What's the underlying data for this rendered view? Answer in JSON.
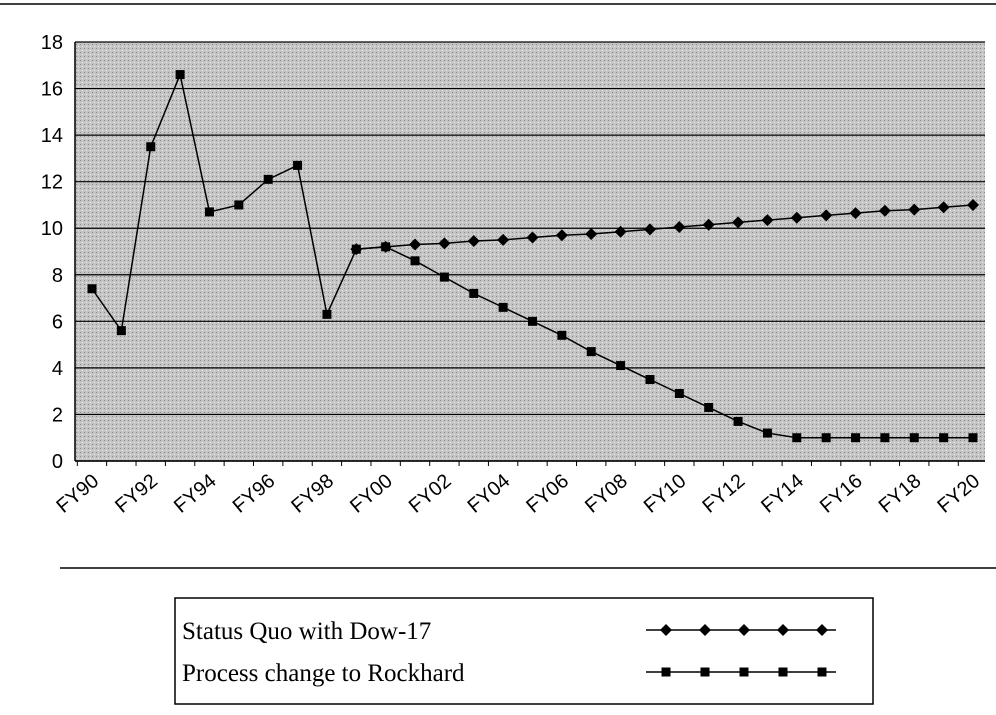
{
  "chart_data": {
    "type": "line",
    "categories": [
      "FY90",
      null,
      "FY92",
      null,
      "FY94",
      null,
      "FY96",
      null,
      "FY98",
      null,
      "FY00",
      null,
      "FY02",
      null,
      "FY04",
      null,
      "FY06",
      null,
      "FY08",
      null,
      "FY10",
      null,
      "FY12",
      null,
      "FY14",
      null,
      "FY16",
      null,
      "FY18",
      null,
      "FY20"
    ],
    "series": [
      {
        "name": "Status Quo with Dow-17",
        "color": "#000000",
        "marker": "diamond",
        "values": [
          null,
          null,
          null,
          null,
          null,
          null,
          null,
          null,
          null,
          9.1,
          9.2,
          9.3,
          9.35,
          9.45,
          9.5,
          9.6,
          9.7,
          9.75,
          9.85,
          9.95,
          10.05,
          10.15,
          10.25,
          10.35,
          10.45,
          10.55,
          10.65,
          10.75,
          10.8,
          10.9,
          11.0
        ]
      },
      {
        "name": "Process change to Rockhard",
        "color": "#000000",
        "marker": "square",
        "values": [
          7.4,
          5.6,
          13.5,
          16.6,
          10.7,
          11.0,
          12.1,
          12.7,
          6.3,
          9.1,
          9.2,
          8.6,
          7.9,
          7.2,
          6.6,
          6.0,
          5.4,
          4.7,
          4.1,
          3.5,
          2.9,
          2.3,
          1.7,
          1.2,
          1.0,
          1.0,
          1.0,
          1.0,
          1.0,
          1.0,
          1.0
        ]
      }
    ],
    "ylim": [
      0,
      18
    ],
    "yticks": [
      0,
      2,
      4,
      6,
      8,
      10,
      12,
      14,
      16,
      18
    ],
    "grid": true
  }
}
